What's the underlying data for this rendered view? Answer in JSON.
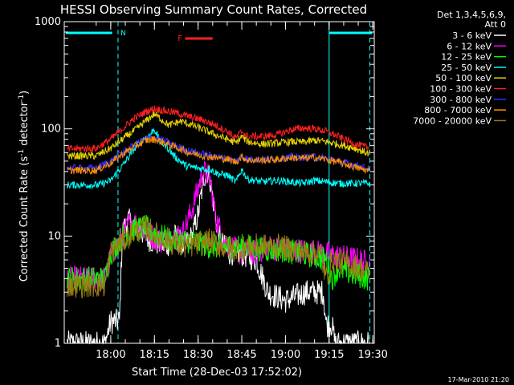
{
  "chart_data": {
    "type": "line",
    "title": "HESSI Observing Summary Count Rates, Corrected",
    "xlabel": "Start Time (28-Dec-03 17:52:02)",
    "ylabel_main": "Corrected Count Rate (s",
    "ylabel_exp1": "-1",
    "ylabel_mid": " detector",
    "ylabel_exp2": "-1",
    "ylabel_end": ")",
    "y_scale": "log",
    "ylim": [
      1,
      1000
    ],
    "y_ticks": [
      "1",
      "10",
      "100",
      "1000"
    ],
    "xlim_min": [
      -7.97,
      98.5
    ],
    "x_ticks": [
      {
        "t": 8,
        "label": "18:00"
      },
      {
        "t": 23,
        "label": "18:15"
      },
      {
        "t": 38,
        "label": "18:30"
      },
      {
        "t": 53,
        "label": "18:45"
      },
      {
        "t": 68,
        "label": "19:00"
      },
      {
        "t": 83,
        "label": "19:15"
      },
      {
        "t": 98,
        "label": "19:30"
      }
    ],
    "legend_placement": "outside-right",
    "legend_header": [
      "Det 1,3,4,5,6,9,",
      "Att 0"
    ],
    "series": [
      {
        "name": "3 - 6 keV",
        "color": "#ffffff",
        "points": [
          [
            -7,
            1
          ],
          [
            6,
            1
          ],
          [
            8,
            1.6
          ],
          [
            11,
            1.6
          ],
          [
            12,
            11
          ],
          [
            14,
            14
          ],
          [
            17,
            12
          ],
          [
            22,
            9
          ],
          [
            27,
            8
          ],
          [
            30,
            10
          ],
          [
            33,
            8
          ],
          [
            36,
            10
          ],
          [
            38,
            16
          ],
          [
            40,
            35
          ],
          [
            41,
            42
          ],
          [
            42,
            35
          ],
          [
            45,
            10
          ],
          [
            48,
            7
          ],
          [
            52,
            7
          ],
          [
            58,
            6
          ],
          [
            62,
            3
          ],
          [
            68,
            2.5
          ],
          [
            75,
            3
          ],
          [
            81,
            3
          ],
          [
            82,
            1.5
          ],
          [
            84,
            1.5
          ],
          [
            85,
            1
          ],
          [
            97,
            1
          ]
        ]
      },
      {
        "name": "6 - 12 keV",
        "color": "#ff00ff",
        "points": [
          [
            -7,
            4
          ],
          [
            6,
            4
          ],
          [
            8,
            6.5
          ],
          [
            12,
            10
          ],
          [
            15,
            14
          ],
          [
            20,
            11
          ],
          [
            25,
            9
          ],
          [
            30,
            10
          ],
          [
            33,
            11
          ],
          [
            36,
            18
          ],
          [
            39,
            35
          ],
          [
            40,
            40
          ],
          [
            42,
            35
          ],
          [
            44,
            15
          ],
          [
            47,
            9
          ],
          [
            52,
            7
          ],
          [
            58,
            7
          ],
          [
            62,
            8
          ],
          [
            66,
            7.5
          ],
          [
            70,
            7.5
          ],
          [
            80,
            7
          ],
          [
            86,
            6.5
          ],
          [
            93,
            6
          ],
          [
            97,
            5.5
          ]
        ]
      },
      {
        "name": "12 - 25 keV",
        "color": "#00ff00",
        "points": [
          [
            -7,
            4
          ],
          [
            6,
            4
          ],
          [
            8,
            7
          ],
          [
            12,
            10
          ],
          [
            16,
            11.5
          ],
          [
            20,
            12
          ],
          [
            25,
            10
          ],
          [
            30,
            9
          ],
          [
            36,
            9
          ],
          [
            42,
            8
          ],
          [
            48,
            8
          ],
          [
            54,
            8
          ],
          [
            60,
            7.5
          ],
          [
            66,
            7.5
          ],
          [
            72,
            7
          ],
          [
            78,
            6.5
          ],
          [
            82,
            6
          ],
          [
            84,
            4
          ],
          [
            86,
            5
          ],
          [
            90,
            4.5
          ],
          [
            97,
            4
          ]
        ]
      },
      {
        "name": "25 - 50 keV",
        "color": "#00ffff",
        "points": [
          [
            -7,
            30
          ],
          [
            4,
            30
          ],
          [
            8,
            33
          ],
          [
            12,
            45
          ],
          [
            16,
            65
          ],
          [
            19,
            80
          ],
          [
            21,
            85
          ],
          [
            23,
            100
          ],
          [
            25,
            75
          ],
          [
            27,
            70
          ],
          [
            30,
            55
          ],
          [
            34,
            45
          ],
          [
            38,
            43
          ],
          [
            42,
            42
          ],
          [
            45,
            38
          ],
          [
            48,
            37
          ],
          [
            51,
            32
          ],
          [
            53,
            42
          ],
          [
            55,
            34
          ],
          [
            60,
            32
          ],
          [
            65,
            33
          ],
          [
            70,
            32
          ],
          [
            74,
            31
          ],
          [
            78,
            33
          ],
          [
            82,
            32
          ],
          [
            86,
            31
          ],
          [
            92,
            31
          ],
          [
            97,
            31
          ]
        ]
      },
      {
        "name": "50 - 100 keV",
        "color": "#e6d200",
        "points": [
          [
            -7,
            56
          ],
          [
            3,
            56
          ],
          [
            8,
            66
          ],
          [
            12,
            80
          ],
          [
            16,
            96
          ],
          [
            20,
            118
          ],
          [
            23,
            138
          ],
          [
            25,
            125
          ],
          [
            28,
            108
          ],
          [
            32,
            118
          ],
          [
            36,
            108
          ],
          [
            40,
            98
          ],
          [
            44,
            88
          ],
          [
            48,
            80
          ],
          [
            51,
            74
          ],
          [
            53,
            85
          ],
          [
            55,
            76
          ],
          [
            60,
            72
          ],
          [
            66,
            74
          ],
          [
            70,
            76
          ],
          [
            74,
            75
          ],
          [
            78,
            78
          ],
          [
            82,
            76
          ],
          [
            86,
            72
          ],
          [
            92,
            66
          ],
          [
            97,
            58
          ]
        ]
      },
      {
        "name": "100 - 300 keV",
        "color": "#ff2020",
        "points": [
          [
            -7,
            65
          ],
          [
            3,
            66
          ],
          [
            8,
            80
          ],
          [
            12,
            100
          ],
          [
            16,
            125
          ],
          [
            20,
            145
          ],
          [
            23,
            155
          ],
          [
            26,
            148
          ],
          [
            30,
            142
          ],
          [
            35,
            130
          ],
          [
            40,
            120
          ],
          [
            44,
            108
          ],
          [
            48,
            95
          ],
          [
            51,
            82
          ],
          [
            53,
            95
          ],
          [
            55,
            85
          ],
          [
            60,
            85
          ],
          [
            65,
            88
          ],
          [
            70,
            98
          ],
          [
            74,
            102
          ],
          [
            78,
            100
          ],
          [
            82,
            95
          ],
          [
            86,
            85
          ],
          [
            92,
            72
          ],
          [
            97,
            66
          ]
        ]
      },
      {
        "name": "300 - 800 keV",
        "color": "#3030ff",
        "points": [
          [
            -7,
            43
          ],
          [
            3,
            43
          ],
          [
            8,
            50
          ],
          [
            12,
            60
          ],
          [
            16,
            70
          ],
          [
            20,
            80
          ],
          [
            23,
            83
          ],
          [
            26,
            78
          ],
          [
            30,
            70
          ],
          [
            35,
            62
          ],
          [
            40,
            58
          ],
          [
            44,
            55
          ],
          [
            48,
            53
          ],
          [
            51,
            50
          ],
          [
            53,
            56
          ],
          [
            55,
            52
          ],
          [
            60,
            52
          ],
          [
            66,
            53
          ],
          [
            70,
            55
          ],
          [
            74,
            54
          ],
          [
            78,
            55
          ],
          [
            82,
            53
          ],
          [
            86,
            50
          ],
          [
            92,
            46
          ],
          [
            97,
            42
          ]
        ]
      },
      {
        "name": "800 - 7000 keV",
        "color": "#ff8c00",
        "points": [
          [
            -7,
            41
          ],
          [
            3,
            41
          ],
          [
            8,
            48
          ],
          [
            12,
            58
          ],
          [
            16,
            68
          ],
          [
            20,
            78
          ],
          [
            23,
            80
          ],
          [
            26,
            75
          ],
          [
            30,
            68
          ],
          [
            35,
            60
          ],
          [
            40,
            56
          ],
          [
            44,
            54
          ],
          [
            48,
            52
          ],
          [
            51,
            49
          ],
          [
            53,
            55
          ],
          [
            55,
            51
          ],
          [
            60,
            51
          ],
          [
            66,
            52
          ],
          [
            70,
            54
          ],
          [
            74,
            53
          ],
          [
            78,
            54
          ],
          [
            82,
            52
          ],
          [
            86,
            49
          ],
          [
            92,
            44
          ],
          [
            97,
            40
          ]
        ]
      },
      {
        "name": "7000 - 20000 keV",
        "color": "#9b7d14",
        "points": [
          [
            -7,
            3.5
          ],
          [
            6,
            3.5
          ],
          [
            8,
            7
          ],
          [
            12,
            9
          ],
          [
            16,
            11
          ],
          [
            20,
            12
          ],
          [
            24,
            10
          ],
          [
            28,
            9
          ],
          [
            33,
            8
          ],
          [
            38,
            8.5
          ],
          [
            42,
            9
          ],
          [
            46,
            8
          ],
          [
            50,
            7.5
          ],
          [
            56,
            8
          ],
          [
            60,
            8
          ],
          [
            66,
            8
          ],
          [
            70,
            7.5
          ],
          [
            76,
            7
          ],
          [
            80,
            7
          ],
          [
            82,
            4
          ],
          [
            84,
            6
          ],
          [
            90,
            5.5
          ],
          [
            97,
            4.5
          ]
        ]
      }
    ],
    "annotations": {
      "n_label": "N",
      "f_label": "F",
      "timestamp": "17-Mar-2010 21:20"
    }
  }
}
